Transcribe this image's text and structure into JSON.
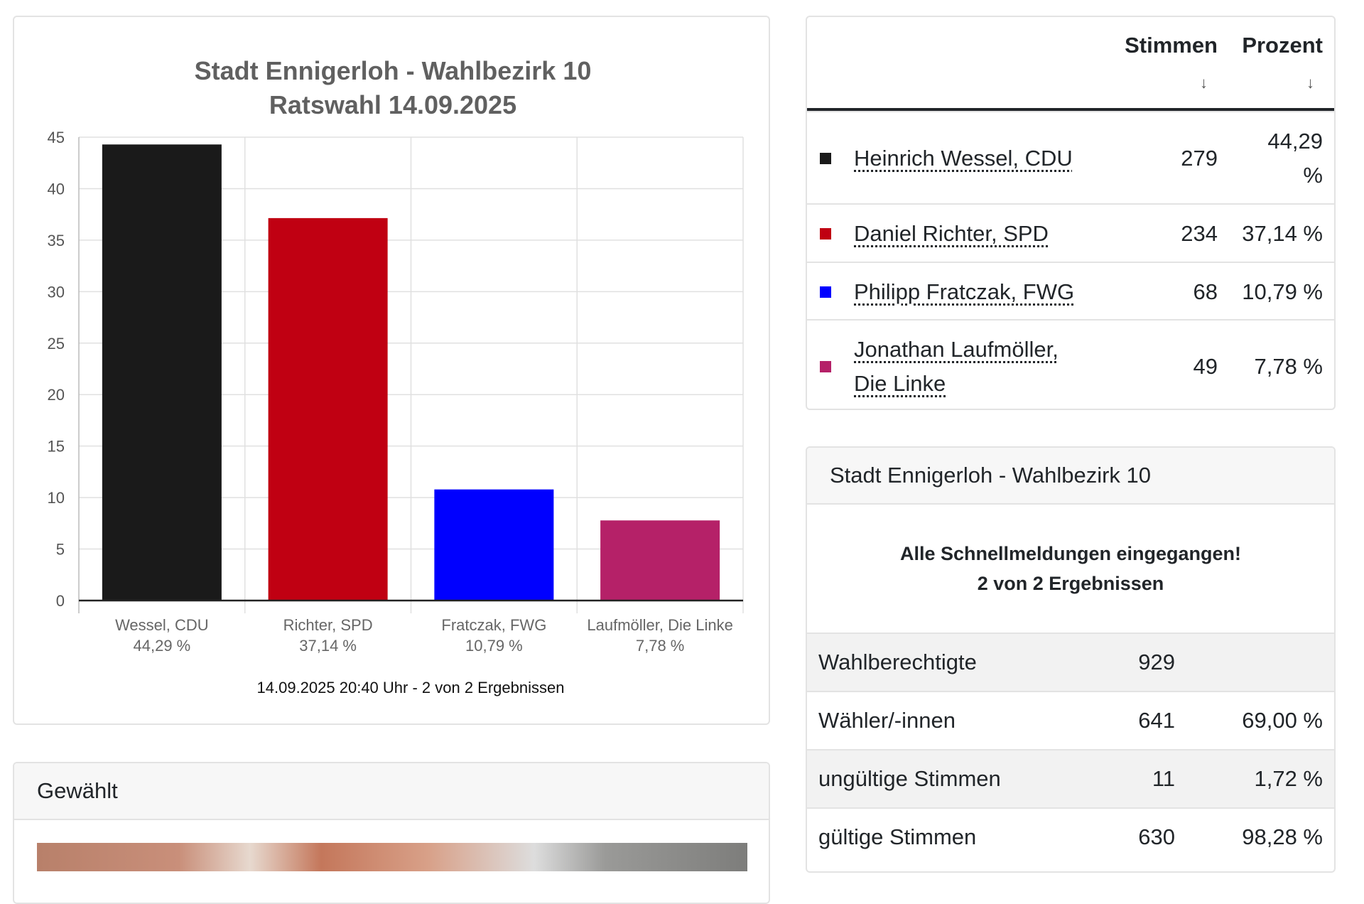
{
  "chart_data": {
    "type": "bar",
    "title": "Stadt Ennigerloh - Wahlbezirk 10",
    "subtitle": "Ratswahl 14.09.2025",
    "categories": [
      "Wessel, CDU",
      "Richter, SPD",
      "Fratczak, FWG",
      "Laufmöller, Die Linke"
    ],
    "category_sublabels": [
      "44,29 %",
      "37,14 %",
      "10,79 %",
      "7,78 %"
    ],
    "values": [
      44.29,
      37.14,
      10.79,
      7.78
    ],
    "colors": [
      "#1a1a1a",
      "#c00012",
      "#0000ff",
      "#b52168"
    ],
    "ylim": [
      0,
      45
    ],
    "yticks": [
      "0",
      "5",
      "10",
      "15",
      "20",
      "25",
      "30",
      "35",
      "40",
      "45"
    ],
    "xlabel": "",
    "ylabel": "",
    "grid": true,
    "footer": "14.09.2025 20:40 Uhr - 2 von 2 Ergebnissen"
  },
  "elected": {
    "header": "Gewählt"
  },
  "results": {
    "col_votes": "Stimmen",
    "col_percent": "Prozent",
    "sort_icon": "↓",
    "rows": [
      {
        "name": "Heinrich Wessel, CDU",
        "votes": "279",
        "percent": "44,29 %",
        "color": "#1a1a1a"
      },
      {
        "name": "Daniel Richter, SPD",
        "votes": "234",
        "percent": "37,14 %",
        "color": "#c00012"
      },
      {
        "name": "Philipp Fratczak, FWG",
        "votes": "68",
        "percent": "10,79 %",
        "color": "#0000ff"
      },
      {
        "name": "Jonathan Laufmöller, Die Linke",
        "votes": "49",
        "percent": "7,78 %",
        "color": "#b52168"
      }
    ]
  },
  "summary": {
    "header": "Stadt Ennigerloh - Wahlbezirk 10",
    "status_line1": "Alle Schnellmeldungen eingegangen!",
    "status_line2": "2 von 2 Ergebnissen",
    "rows": [
      {
        "label": "Wahlberechtigte",
        "count": "929",
        "percent": ""
      },
      {
        "label": "Wähler/-innen",
        "count": "641",
        "percent": "69,00 %"
      },
      {
        "label": "ungültige Stimmen",
        "count": "11",
        "percent": "1,72 %"
      },
      {
        "label": "gültige Stimmen",
        "count": "630",
        "percent": "98,28 %"
      }
    ]
  }
}
